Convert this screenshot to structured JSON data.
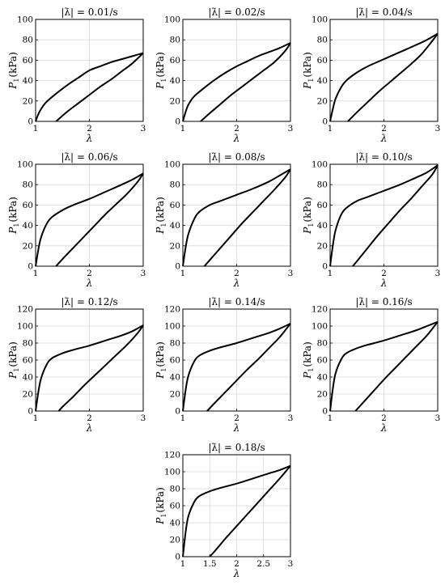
{
  "colors": {
    "curve": "#000000",
    "grid": "#d9d9d9",
    "axes": "#000000",
    "background": "#ffffff"
  },
  "chart_data": [
    {
      "type": "line",
      "title": "|λ̇| = 0.01/s",
      "xlabel": "λ",
      "ylabel_main": "P",
      "ylabel_sub": "1",
      "ylabel_unit": "(kPa)",
      "xlim": [
        1,
        3
      ],
      "ylim": [
        0,
        100
      ],
      "xticks": [
        "1",
        "2",
        "3"
      ],
      "yticks": [
        "0",
        "20",
        "40",
        "60",
        "80",
        "100"
      ],
      "grid": true,
      "series": [
        {
          "x": [
            1.0,
            1.05,
            1.1,
            1.2,
            1.4,
            1.6,
            1.8,
            2.0,
            2.2,
            2.4,
            2.6,
            2.8,
            3.0
          ],
          "y": [
            0,
            7,
            12,
            19,
            28,
            36,
            43,
            50,
            54,
            58,
            61,
            64,
            67
          ]
        },
        {
          "x": [
            1.38,
            1.6,
            1.8,
            2.0,
            2.2,
            2.4,
            2.6,
            2.8,
            3.0
          ],
          "y": [
            0,
            10,
            18,
            26,
            34,
            41,
            49,
            57,
            67
          ]
        }
      ]
    },
    {
      "type": "line",
      "title": "|λ̇| = 0.02/s",
      "xlabel": "λ",
      "ylabel_main": "P",
      "ylabel_sub": "1",
      "ylabel_unit": "(kPa)",
      "xlim": [
        1,
        3
      ],
      "ylim": [
        0,
        100
      ],
      "xticks": [
        "1",
        "2",
        "3"
      ],
      "yticks": [
        "0",
        "20",
        "40",
        "60",
        "80",
        "100"
      ],
      "grid": true,
      "series": [
        {
          "x": [
            1.0,
            1.05,
            1.1,
            1.2,
            1.4,
            1.6,
            1.8,
            2.0,
            2.2,
            2.4,
            2.6,
            2.8,
            3.0
          ],
          "y": [
            0,
            9,
            16,
            24,
            33,
            41,
            48,
            54,
            59,
            64,
            68,
            72,
            77
          ]
        },
        {
          "x": [
            1.33,
            1.5,
            1.7,
            1.9,
            2.1,
            2.3,
            2.5,
            2.7,
            2.9,
            3.0
          ],
          "y": [
            0,
            8,
            17,
            26,
            34,
            42,
            50,
            58,
            69,
            77
          ]
        }
      ]
    },
    {
      "type": "line",
      "title": "|λ̇| = 0.04/s",
      "xlabel": "λ",
      "ylabel_main": "P",
      "ylabel_sub": "1",
      "ylabel_unit": "(kPa)",
      "xlim": [
        1,
        3
      ],
      "ylim": [
        0,
        100
      ],
      "xticks": [
        "1",
        "2",
        "3"
      ],
      "yticks": [
        "0",
        "20",
        "40",
        "60",
        "80",
        "100"
      ],
      "grid": true,
      "series": [
        {
          "x": [
            1.0,
            1.05,
            1.1,
            1.2,
            1.3,
            1.5,
            1.7,
            2.0,
            2.3,
            2.6,
            2.8,
            3.0
          ],
          "y": [
            0,
            12,
            22,
            33,
            40,
            48,
            54,
            61,
            68,
            75,
            80,
            86
          ]
        },
        {
          "x": [
            1.33,
            1.5,
            1.7,
            1.9,
            2.1,
            2.3,
            2.5,
            2.7,
            2.9,
            3.0
          ],
          "y": [
            0,
            9,
            19,
            29,
            38,
            47,
            56,
            66,
            79,
            86
          ]
        }
      ]
    },
    {
      "type": "line",
      "title": "|λ̇| = 0.06/s",
      "xlabel": "λ",
      "ylabel_main": "P",
      "ylabel_sub": "1",
      "ylabel_unit": "(kPa)",
      "xlim": [
        1,
        3
      ],
      "ylim": [
        0,
        100
      ],
      "xticks": [
        "1",
        "2",
        "3"
      ],
      "yticks": [
        "0",
        "20",
        "40",
        "60",
        "80",
        "100"
      ],
      "grid": true,
      "series": [
        {
          "x": [
            1.0,
            1.05,
            1.1,
            1.2,
            1.3,
            1.5,
            1.7,
            2.0,
            2.3,
            2.6,
            2.8,
            3.0
          ],
          "y": [
            0,
            16,
            28,
            41,
            48,
            55,
            60,
            66,
            73,
            80,
            85,
            91
          ]
        },
        {
          "x": [
            1.38,
            1.5,
            1.7,
            1.9,
            2.1,
            2.3,
            2.5,
            2.7,
            2.9,
            3.0
          ],
          "y": [
            0,
            7,
            18,
            29,
            40,
            51,
            61,
            71,
            83,
            91
          ]
        }
      ]
    },
    {
      "type": "line",
      "title": "|λ̇| = 0.08/s",
      "xlabel": "λ",
      "ylabel_main": "P",
      "ylabel_sub": "1",
      "ylabel_unit": "(kPa)",
      "xlim": [
        1,
        3
      ],
      "ylim": [
        0,
        100
      ],
      "xticks": [
        "1",
        "2",
        "3"
      ],
      "yticks": [
        "0",
        "20",
        "40",
        "60",
        "80",
        "100"
      ],
      "grid": true,
      "series": [
        {
          "x": [
            1.0,
            1.05,
            1.1,
            1.2,
            1.3,
            1.5,
            1.7,
            2.0,
            2.3,
            2.6,
            2.8,
            3.0
          ],
          "y": [
            0,
            18,
            31,
            45,
            53,
            60,
            64,
            70,
            76,
            83,
            89,
            95
          ]
        },
        {
          "x": [
            1.4,
            1.5,
            1.7,
            1.9,
            2.1,
            2.3,
            2.5,
            2.7,
            2.9,
            3.0
          ],
          "y": [
            0,
            6,
            18,
            30,
            42,
            53,
            64,
            75,
            87,
            95
          ]
        }
      ]
    },
    {
      "type": "line",
      "title": "|λ̇| = 0.10/s",
      "xlabel": "λ",
      "ylabel_main": "P",
      "ylabel_sub": "1",
      "ylabel_unit": "(kPa)",
      "xlim": [
        1,
        3
      ],
      "ylim": [
        0,
        100
      ],
      "xticks": [
        "1",
        "2",
        "3"
      ],
      "yticks": [
        "0",
        "20",
        "40",
        "60",
        "80",
        "100"
      ],
      "grid": true,
      "series": [
        {
          "x": [
            1.0,
            1.05,
            1.1,
            1.2,
            1.3,
            1.5,
            1.7,
            2.0,
            2.3,
            2.6,
            2.8,
            3.0
          ],
          "y": [
            0,
            20,
            35,
            50,
            57,
            64,
            68,
            74,
            80,
            87,
            92,
            99
          ]
        },
        {
          "x": [
            1.42,
            1.5,
            1.7,
            1.9,
            2.1,
            2.3,
            2.5,
            2.7,
            2.9,
            3.0
          ],
          "y": [
            0,
            5,
            18,
            31,
            43,
            55,
            66,
            78,
            90,
            99
          ]
        }
      ]
    },
    {
      "type": "line",
      "title": "|λ̇| = 0.12/s",
      "xlabel": "λ",
      "ylabel_main": "P",
      "ylabel_sub": "1",
      "ylabel_unit": "(kPa)",
      "xlim": [
        1,
        3
      ],
      "ylim": [
        0,
        120
      ],
      "xticks": [
        "1",
        "2",
        "3"
      ],
      "yticks": [
        "0",
        "20",
        "40",
        "60",
        "80",
        "100",
        "120"
      ],
      "grid": true,
      "series": [
        {
          "x": [
            1.0,
            1.05,
            1.1,
            1.2,
            1.3,
            1.5,
            1.7,
            2.0,
            2.3,
            2.6,
            2.8,
            3.0
          ],
          "y": [
            0,
            22,
            38,
            54,
            62,
            68,
            72,
            77,
            83,
            89,
            94,
            101
          ]
        },
        {
          "x": [
            1.43,
            1.5,
            1.7,
            1.9,
            2.1,
            2.3,
            2.5,
            2.7,
            2.9,
            3.0
          ],
          "y": [
            0,
            5,
            17,
            30,
            42,
            54,
            66,
            78,
            92,
            101
          ]
        }
      ]
    },
    {
      "type": "line",
      "title": "|λ̇| = 0.14/s",
      "xlabel": "λ",
      "ylabel_main": "P",
      "ylabel_sub": "1",
      "ylabel_unit": "(kPa)",
      "xlim": [
        1,
        3
      ],
      "ylim": [
        0,
        120
      ],
      "xticks": [
        "1",
        "2",
        "3"
      ],
      "yticks": [
        "0",
        "20",
        "40",
        "60",
        "80",
        "100",
        "120"
      ],
      "grid": true,
      "series": [
        {
          "x": [
            1.0,
            1.05,
            1.1,
            1.2,
            1.3,
            1.5,
            1.7,
            2.0,
            2.3,
            2.6,
            2.8,
            3.0
          ],
          "y": [
            0,
            24,
            41,
            57,
            65,
            71,
            75,
            80,
            86,
            92,
            97,
            103
          ]
        },
        {
          "x": [
            1.45,
            1.6,
            1.8,
            2.0,
            2.2,
            2.4,
            2.6,
            2.8,
            3.0
          ],
          "y": [
            0,
            10,
            23,
            36,
            49,
            61,
            74,
            87,
            103
          ]
        }
      ]
    },
    {
      "type": "line",
      "title": "|λ̇| = 0.16/s",
      "xlabel": "λ",
      "ylabel_main": "P",
      "ylabel_sub": "1",
      "ylabel_unit": "(kPa)",
      "xlim": [
        1,
        3
      ],
      "ylim": [
        0,
        120
      ],
      "xticks": [
        "1",
        "2",
        "3"
      ],
      "yticks": [
        "0",
        "20",
        "40",
        "60",
        "80",
        "100",
        "120"
      ],
      "grid": true,
      "series": [
        {
          "x": [
            1.0,
            1.05,
            1.1,
            1.2,
            1.3,
            1.5,
            1.7,
            2.0,
            2.3,
            2.6,
            2.8,
            3.0
          ],
          "y": [
            0,
            26,
            44,
            60,
            68,
            74,
            78,
            83,
            89,
            95,
            100,
            105
          ]
        },
        {
          "x": [
            1.47,
            1.6,
            1.8,
            2.0,
            2.2,
            2.4,
            2.6,
            2.8,
            3.0
          ],
          "y": [
            0,
            9,
            23,
            37,
            50,
            63,
            76,
            89,
            105
          ]
        }
      ]
    },
    {
      "type": "line",
      "title": "|λ̇| = 0.18/s",
      "xlabel": "λ",
      "ylabel_main": "P",
      "ylabel_sub": "1",
      "ylabel_unit": "(kPa)",
      "xlim": [
        1,
        3
      ],
      "ylim": [
        0,
        120
      ],
      "xticks": [
        "1",
        "1.5",
        "2",
        "2.5",
        "3"
      ],
      "yticks": [
        "0",
        "20",
        "40",
        "60",
        "80",
        "100",
        "120"
      ],
      "grid": true,
      "series": [
        {
          "x": [
            1.0,
            1.05,
            1.1,
            1.2,
            1.3,
            1.5,
            1.7,
            2.0,
            2.3,
            2.6,
            2.8,
            3.0
          ],
          "y": [
            0,
            28,
            47,
            63,
            71,
            77,
            81,
            86,
            92,
            98,
            102,
            107
          ]
        },
        {
          "x": [
            1.5,
            1.6,
            1.8,
            2.0,
            2.2,
            2.4,
            2.6,
            2.8,
            3.0
          ],
          "y": [
            0,
            7,
            22,
            36,
            50,
            64,
            78,
            92,
            107
          ]
        }
      ]
    }
  ]
}
